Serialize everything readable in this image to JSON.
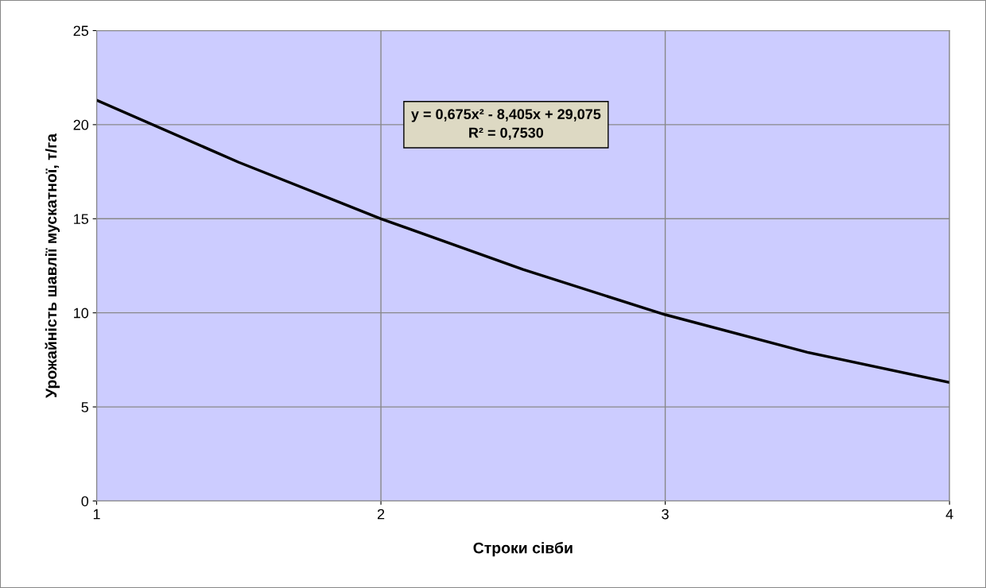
{
  "chart_data": {
    "type": "line",
    "xlabel": "Строки сівби",
    "ylabel": "Урожайність шавлії мускатної, т/га",
    "x": [
      1,
      1.5,
      2,
      2.5,
      3,
      3.5,
      4
    ],
    "series": [
      {
        "color": "#000000",
        "values": [
          21.3,
          18.0,
          15.0,
          12.3,
          9.9,
          7.9,
          6.3
        ]
      }
    ],
    "xlim": [
      1,
      4
    ],
    "xticks": [
      1,
      2,
      3,
      4
    ],
    "ylim": [
      0,
      25
    ],
    "yticks": [
      0,
      5,
      10,
      15,
      20,
      25
    ],
    "grid": true,
    "marker": "none",
    "line_style": "solid",
    "annotations": [
      "y = 0,675x² - 8,405x + 29,075\nR² = 0,7530"
    ]
  }
}
